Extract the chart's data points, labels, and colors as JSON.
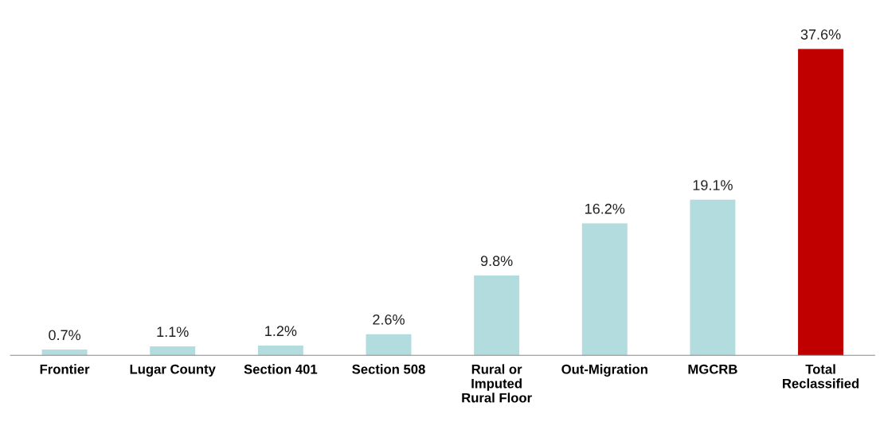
{
  "chart_data": {
    "type": "bar",
    "categories": [
      "Frontier",
      "Lugar County",
      "Section 401",
      "Section 508",
      "Rural or\nImputed\nRural Floor",
      "Out-Migration",
      "MGCRB",
      "Total\nReclassified"
    ],
    "values": [
      0.7,
      1.1,
      1.2,
      2.6,
      9.8,
      16.2,
      19.1,
      37.6
    ],
    "colors": [
      "#b3dcdf",
      "#b3dcdf",
      "#b3dcdf",
      "#b3dcdf",
      "#b3dcdf",
      "#b3dcdf",
      "#b3dcdf",
      "#c00000"
    ],
    "value_labels": [
      "0.7%",
      "1.1%",
      "1.2%",
      "2.6%",
      "9.8%",
      "16.2%",
      "19.1%",
      "37.6%"
    ],
    "grid": false,
    "legend": false
  }
}
